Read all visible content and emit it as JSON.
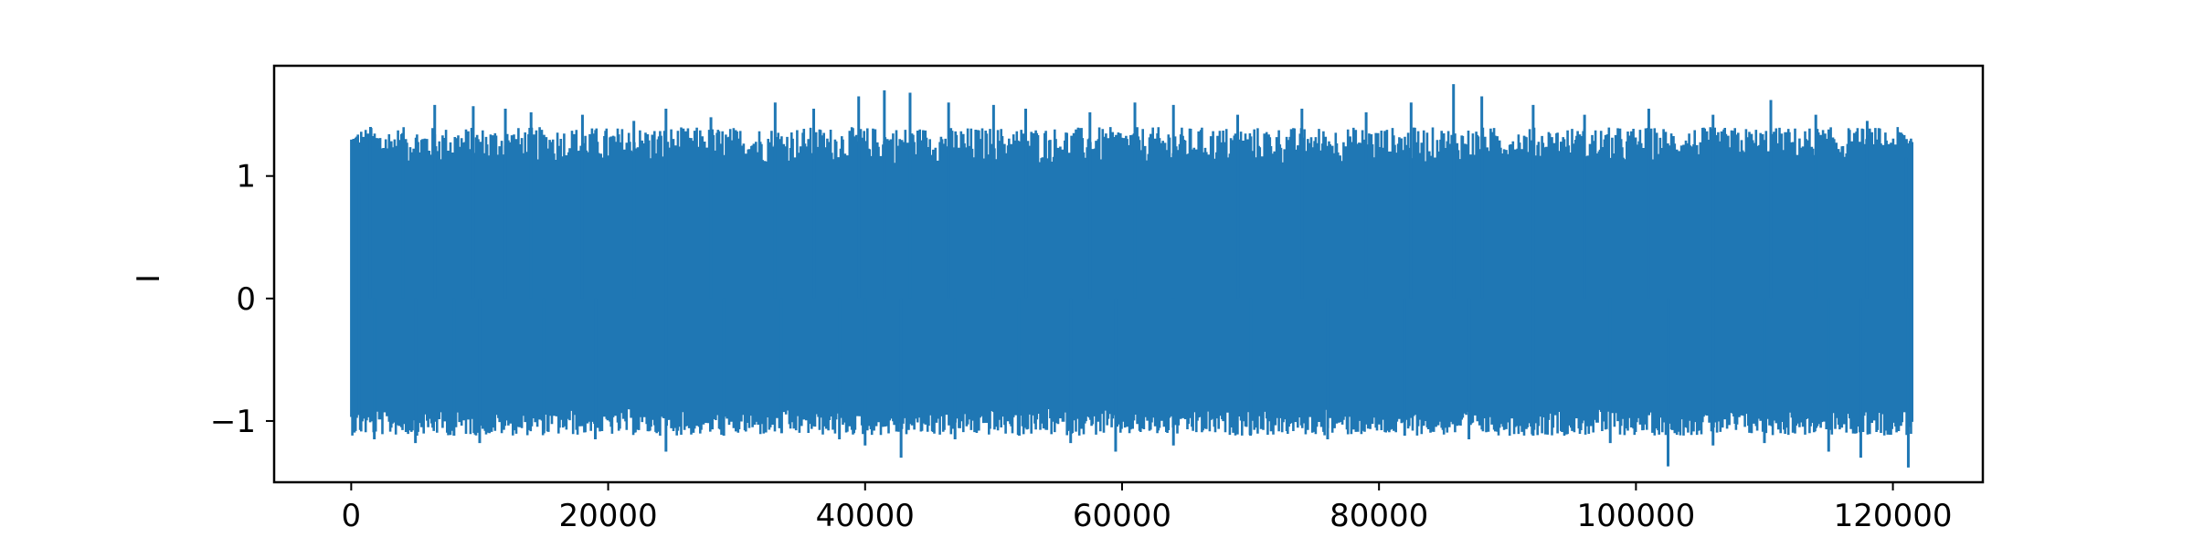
{
  "chart_data": {
    "type": "line",
    "title": "",
    "xlabel": "",
    "ylabel": "I",
    "xlim": [
      -6000,
      127000
    ],
    "ylim": [
      -1.5,
      1.9
    ],
    "x_ticks": [
      0,
      20000,
      40000,
      60000,
      80000,
      100000,
      120000
    ],
    "x_tick_labels": [
      "0",
      "20000",
      "40000",
      "60000",
      "80000",
      "100000",
      "120000"
    ],
    "y_ticks": [
      -1,
      0,
      1
    ],
    "y_tick_labels": [
      "−1",
      "0",
      "1"
    ],
    "grid": false,
    "legend": "none",
    "series": [
      {
        "color": "#1f77b4",
        "x_start": 0,
        "x_end": 121500,
        "dense_band": [
          -0.9,
          1.1
        ],
        "peaks": [
          {
            "x": 600,
            "y": 0.95
          },
          {
            "x": 1500,
            "y": 1.4
          },
          {
            "x": 4000,
            "y": 1.35
          },
          {
            "x": 6500,
            "y": 1.58
          },
          {
            "x": 9500,
            "y": 1.57
          },
          {
            "x": 12000,
            "y": 1.55
          },
          {
            "x": 14000,
            "y": 1.52
          },
          {
            "x": 18000,
            "y": 1.5
          },
          {
            "x": 22000,
            "y": 1.45
          },
          {
            "x": 24500,
            "y": 1.55
          },
          {
            "x": 28000,
            "y": 1.48
          },
          {
            "x": 33000,
            "y": 1.6
          },
          {
            "x": 36000,
            "y": 1.55
          },
          {
            "x": 39500,
            "y": 1.65
          },
          {
            "x": 41500,
            "y": 1.7
          },
          {
            "x": 43500,
            "y": 1.68
          },
          {
            "x": 46500,
            "y": 1.6
          },
          {
            "x": 50000,
            "y": 1.58
          },
          {
            "x": 52500,
            "y": 1.55
          },
          {
            "x": 57500,
            "y": 1.52
          },
          {
            "x": 61000,
            "y": 1.6
          },
          {
            "x": 64000,
            "y": 1.58
          },
          {
            "x": 69000,
            "y": 1.5
          },
          {
            "x": 74000,
            "y": 1.55
          },
          {
            "x": 79000,
            "y": 1.52
          },
          {
            "x": 82500,
            "y": 1.6
          },
          {
            "x": 85800,
            "y": 1.75
          },
          {
            "x": 88000,
            "y": 1.65
          },
          {
            "x": 92000,
            "y": 1.58
          },
          {
            "x": 96000,
            "y": 1.5
          },
          {
            "x": 101000,
            "y": 1.55
          },
          {
            "x": 106000,
            "y": 1.5
          },
          {
            "x": 110500,
            "y": 1.62
          },
          {
            "x": 114000,
            "y": 1.5
          },
          {
            "x": 118000,
            "y": 1.45
          },
          {
            "x": 121000,
            "y": 1.15
          }
        ],
        "troughs": [
          {
            "x": 600,
            "y": -0.95
          },
          {
            "x": 1800,
            "y": -1.15
          },
          {
            "x": 5000,
            "y": -1.18
          },
          {
            "x": 8000,
            "y": -1.12
          },
          {
            "x": 10000,
            "y": -1.18
          },
          {
            "x": 15000,
            "y": -1.1
          },
          {
            "x": 19000,
            "y": -1.15
          },
          {
            "x": 24500,
            "y": -1.25
          },
          {
            "x": 29000,
            "y": -1.12
          },
          {
            "x": 33500,
            "y": -1.1
          },
          {
            "x": 38000,
            "y": -1.15
          },
          {
            "x": 40000,
            "y": -1.2
          },
          {
            "x": 42800,
            "y": -1.3
          },
          {
            "x": 47000,
            "y": -1.15
          },
          {
            "x": 52000,
            "y": -1.12
          },
          {
            "x": 56000,
            "y": -1.18
          },
          {
            "x": 59500,
            "y": -1.25
          },
          {
            "x": 64000,
            "y": -1.2
          },
          {
            "x": 70000,
            "y": -1.12
          },
          {
            "x": 76000,
            "y": -1.15
          },
          {
            "x": 82000,
            "y": -1.12
          },
          {
            "x": 87000,
            "y": -1.15
          },
          {
            "x": 92000,
            "y": -1.12
          },
          {
            "x": 98000,
            "y": -1.18
          },
          {
            "x": 102500,
            "y": -1.37
          },
          {
            "x": 106000,
            "y": -1.2
          },
          {
            "x": 110000,
            "y": -1.18
          },
          {
            "x": 115000,
            "y": -1.25
          },
          {
            "x": 117500,
            "y": -1.3
          },
          {
            "x": 121200,
            "y": -1.38
          }
        ]
      }
    ]
  }
}
